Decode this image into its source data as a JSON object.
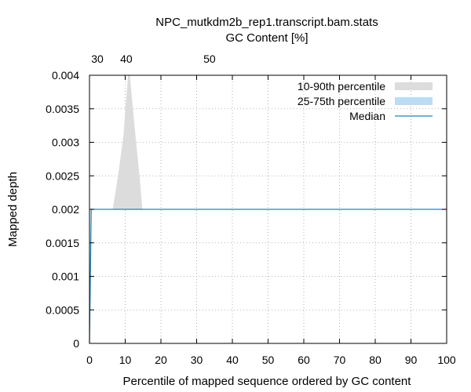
{
  "chart_data": {
    "type": "area",
    "title": "NPC_mutkdm2b_rep1.transcript.bam.stats",
    "top_axis_label": "GC Content [%]",
    "xlabel": "Percentile of mapped sequence ordered by GC content",
    "ylabel": "Mapped depth",
    "xlim": [
      0,
      100
    ],
    "ylim": [
      0,
      0.004
    ],
    "x_ticks": [
      0,
      10,
      20,
      30,
      40,
      50,
      60,
      70,
      80,
      90,
      100
    ],
    "y_ticks": [
      0,
      0.0005,
      0.001,
      0.0015,
      0.002,
      0.0025,
      0.003,
      0.0035,
      0.004
    ],
    "x_tick_labels": [
      "0",
      "10",
      "20",
      "30",
      "40",
      "50",
      "60",
      "70",
      "80",
      "90",
      "100"
    ],
    "y_tick_labels": [
      "0",
      "0.0005",
      "0.001",
      "0.0015",
      "0.002",
      "0.0025",
      "0.003",
      "0.0035",
      "0.004"
    ],
    "top_ticks": [
      {
        "label": "30",
        "x": 2.2
      },
      {
        "label": "40",
        "x": 10.3
      },
      {
        "label": "50",
        "x": 33.6
      }
    ],
    "grid": true,
    "legend_position": "top-right",
    "legend": [
      {
        "label": "10-90th percentile",
        "kind": "band",
        "color": "#dcdcdc"
      },
      {
        "label": "25-75th percentile",
        "kind": "band",
        "color": "#bcdcf5"
      },
      {
        "label": "Median",
        "kind": "line",
        "color": "#1a86b8"
      }
    ],
    "series": [
      {
        "name": "10-90th percentile",
        "kind": "band",
        "color": "#dcdcdc",
        "points": [
          [
            6.5,
            0.002
          ],
          [
            8.0,
            0.0025
          ],
          [
            9.5,
            0.0031
          ],
          [
            10.8,
            0.004
          ],
          [
            11.3,
            0.004
          ],
          [
            12.5,
            0.0033
          ],
          [
            14.0,
            0.0025
          ],
          [
            14.8,
            0.002
          ]
        ],
        "base": 0.002
      },
      {
        "name": "Median",
        "kind": "line",
        "color": "#1a86b8",
        "points": [
          [
            0,
            0
          ],
          [
            0.5,
            0.002
          ],
          [
            100,
            0.002
          ]
        ]
      }
    ]
  }
}
